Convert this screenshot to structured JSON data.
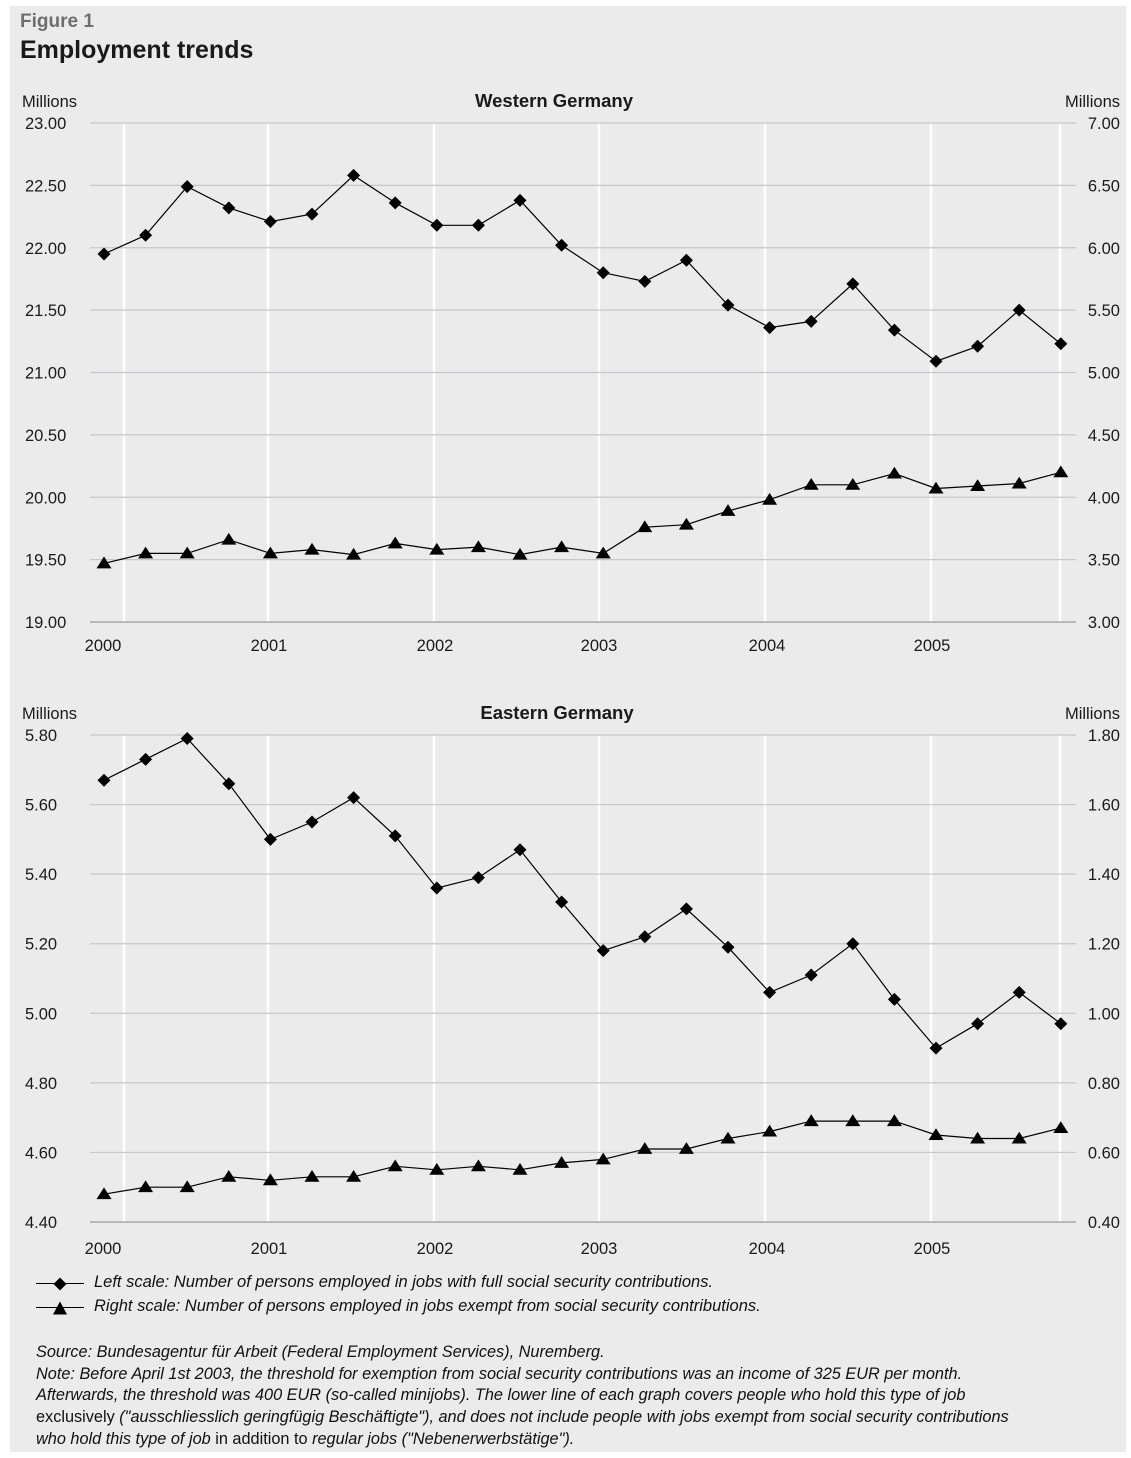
{
  "figure": {
    "label": "Figure 1",
    "title": "Employment trends"
  },
  "chart_data": [
    {
      "type": "line",
      "title": "Western Germany",
      "left_axis_label": "Millions",
      "right_axis_label": "Millions",
      "x_tick_labels": [
        "2000",
        "2001",
        "2002",
        "2003",
        "2004",
        "2005"
      ],
      "x": [
        "2000 Q1",
        "2000 Q2",
        "2000 Q3",
        "2000 Q4",
        "2001 Q1",
        "2001 Q2",
        "2001 Q3",
        "2001 Q4",
        "2002 Q1",
        "2002 Q2",
        "2002 Q3",
        "2002 Q4",
        "2003 Q1",
        "2003 Q2",
        "2003 Q3",
        "2003 Q4",
        "2004 Q1",
        "2004 Q2",
        "2004 Q3",
        "2004 Q4",
        "2005 Q1",
        "2005 Q2",
        "2005 Q3",
        "2005 Q4"
      ],
      "left_ylim": [
        19.0,
        23.0
      ],
      "right_ylim": [
        3.0,
        7.0
      ],
      "left_ticks": [
        "23.00",
        "22.50",
        "22.00",
        "21.50",
        "21.00",
        "20.50",
        "20.00",
        "19.50",
        "19.00"
      ],
      "right_ticks": [
        "7.00",
        "6.50",
        "6.00",
        "5.50",
        "5.00",
        "4.50",
        "4.00",
        "3.50",
        "3.00"
      ],
      "grid": "vertical",
      "series": [
        {
          "axis": "left",
          "marker": "diamond",
          "values": [
            21.95,
            22.1,
            22.49,
            22.32,
            22.21,
            22.27,
            22.58,
            22.36,
            22.18,
            22.18,
            22.38,
            22.02,
            21.8,
            21.73,
            21.9,
            21.54,
            21.36,
            21.41,
            21.71,
            21.34,
            21.09,
            21.21,
            21.5,
            21.23
          ]
        },
        {
          "axis": "right",
          "marker": "triangle",
          "values": [
            3.47,
            3.55,
            3.55,
            3.66,
            3.55,
            3.58,
            3.54,
            3.63,
            3.58,
            3.6,
            3.54,
            3.6,
            3.55,
            3.76,
            3.78,
            3.89,
            3.98,
            4.1,
            4.1,
            4.19,
            4.07,
            4.09,
            4.11,
            4.2
          ]
        }
      ]
    },
    {
      "type": "line",
      "title": "Eastern Germany",
      "left_axis_label": "Millions",
      "right_axis_label": "Millions",
      "x_tick_labels": [
        "2000",
        "2001",
        "2002",
        "2003",
        "2004",
        "2005"
      ],
      "x": [
        "2000 Q1",
        "2000 Q2",
        "2000 Q3",
        "2000 Q4",
        "2001 Q1",
        "2001 Q2",
        "2001 Q3",
        "2001 Q4",
        "2002 Q1",
        "2002 Q2",
        "2002 Q3",
        "2002 Q4",
        "2003 Q1",
        "2003 Q2",
        "2003 Q3",
        "2003 Q4",
        "2004 Q1",
        "2004 Q2",
        "2004 Q3",
        "2004 Q4",
        "2005 Q1",
        "2005 Q2",
        "2005 Q3",
        "2005 Q4"
      ],
      "left_ylim": [
        4.4,
        5.8
      ],
      "right_ylim": [
        0.4,
        1.8
      ],
      "left_ticks": [
        "5.80",
        "5.60",
        "5.40",
        "5.20",
        "5.00",
        "4.80",
        "4.60",
        "4.40"
      ],
      "right_ticks": [
        "1.80",
        "1.60",
        "1.40",
        "1.20",
        "1.00",
        "0.80",
        "0.60",
        "0.40"
      ],
      "grid": "vertical",
      "series": [
        {
          "axis": "left",
          "marker": "diamond",
          "values": [
            5.67,
            5.73,
            5.79,
            5.66,
            5.5,
            5.55,
            5.62,
            5.51,
            5.36,
            5.39,
            5.47,
            5.32,
            5.18,
            5.22,
            5.3,
            5.19,
            5.06,
            5.11,
            5.2,
            5.04,
            4.9,
            4.97,
            5.06,
            4.97
          ]
        },
        {
          "axis": "right",
          "marker": "triangle",
          "values": [
            0.48,
            0.5,
            0.5,
            0.53,
            0.52,
            0.53,
            0.53,
            0.56,
            0.55,
            0.56,
            0.55,
            0.57,
            0.58,
            0.61,
            0.61,
            0.64,
            0.66,
            0.69,
            0.69,
            0.69,
            0.65,
            0.64,
            0.64,
            0.67
          ]
        }
      ]
    }
  ],
  "legend": [
    {
      "marker": "diamond",
      "text": "Left scale: Number of persons employed in jobs with full social security contributions."
    },
    {
      "marker": "triangle",
      "text": "Right scale: Number of persons employed in jobs exempt from social security contributions."
    }
  ],
  "notes": {
    "source": "Source: Bundesagentur für Arbeit (Federal Employment Services), Nuremberg.",
    "note_1": "Note: Before April 1st 2003, the threshold for exemption from social security contributions was an income of 325 EUR per month.",
    "note_2": "Afterwards, the threshold was 400 EUR (so-called minijobs). The lower line of each graph covers people who hold this type of job",
    "note_3a": "exclusively",
    "note_3b": " (\"ausschliesslich geringfügig Beschäftigte\"), and does not include people with jobs exempt from social security contributions",
    "note_4a": "who hold this type of job",
    "note_4b": " in addition to ",
    "note_4c": "regular jobs",
    "note_4d": " (\"Nebenerwerbstätige\")."
  }
}
